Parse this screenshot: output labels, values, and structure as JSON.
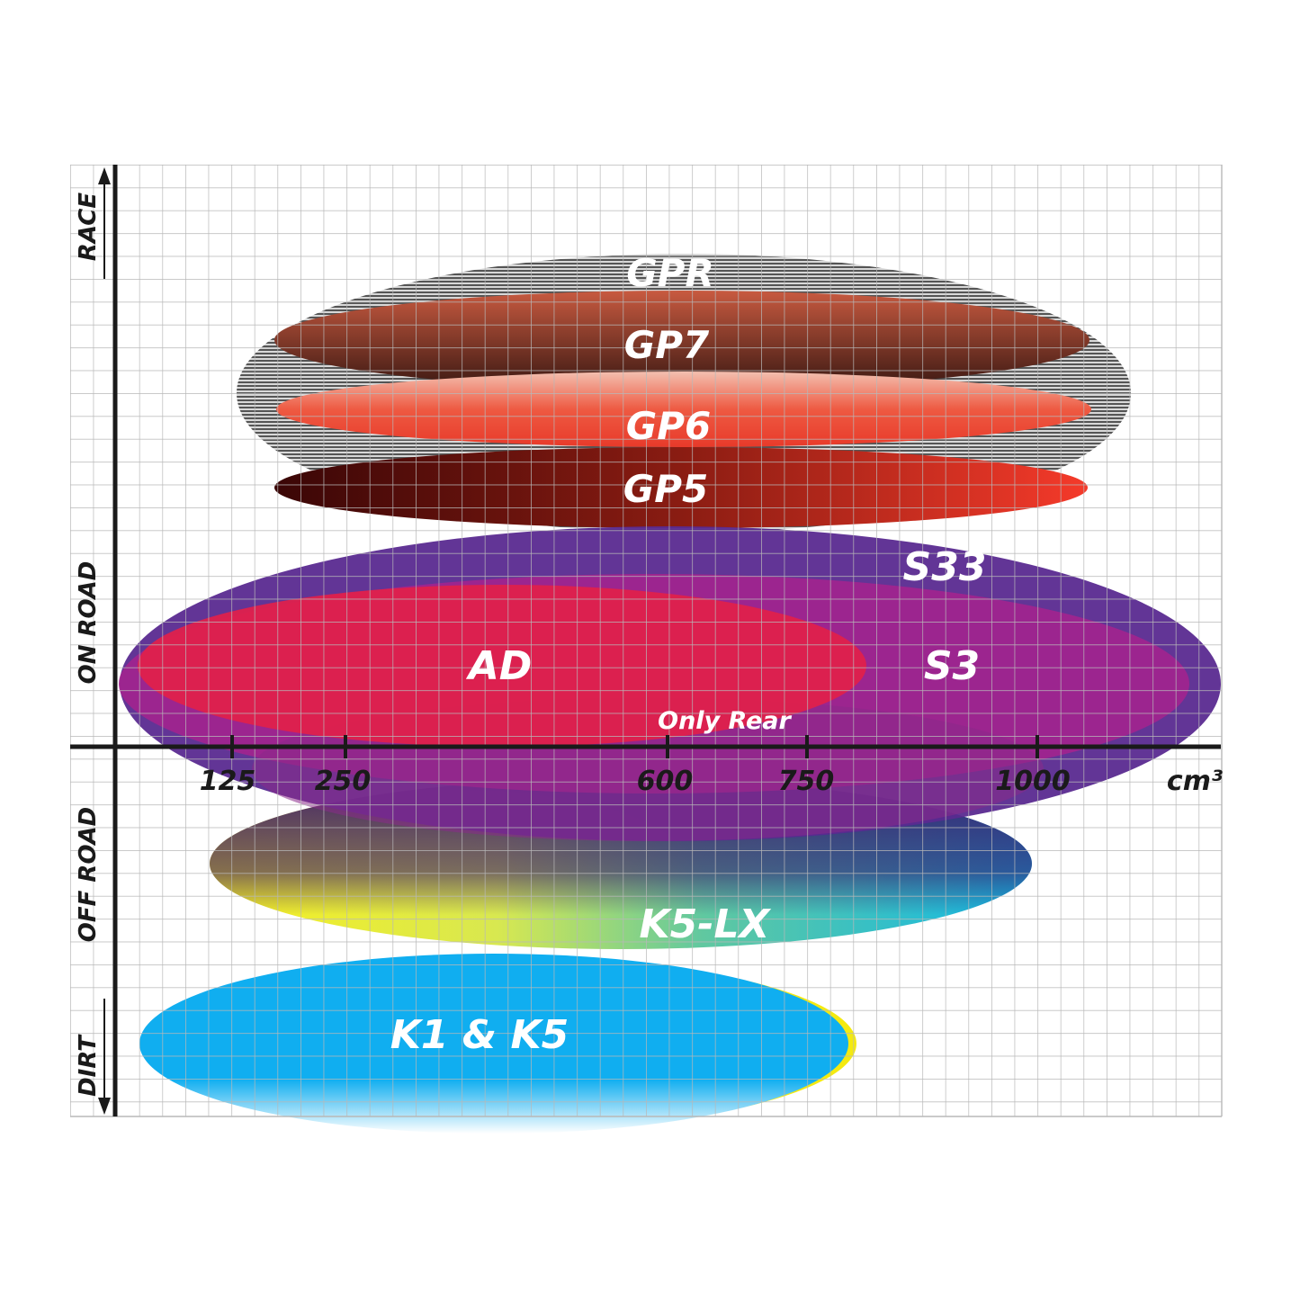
{
  "axes": {
    "x_ticks": [
      "125",
      "250",
      "600",
      "750",
      "1000"
    ],
    "x_unit": "cm³",
    "y_labels": [
      "RACE",
      "ON ROAD",
      "OFF ROAD",
      "DIRT"
    ]
  },
  "products": [
    {
      "name": "GPR",
      "color": "#9a9a9a"
    },
    {
      "name": "GP7",
      "color": "#8a3a28"
    },
    {
      "name": "GP6",
      "color": "#e84a36"
    },
    {
      "name": "GP5",
      "color": "#a01a10"
    },
    {
      "name": "S33",
      "color": "#5a2a90"
    },
    {
      "name": "S3",
      "color": "#a3238e"
    },
    {
      "name": "AD",
      "color": "#e21f4a"
    },
    {
      "name": "Only Rear",
      "color": "#8a2a8a"
    },
    {
      "name": "K5-LX",
      "color": "#20b8d8"
    },
    {
      "name": "K1 & K5",
      "color": "#10aef0"
    }
  ]
}
